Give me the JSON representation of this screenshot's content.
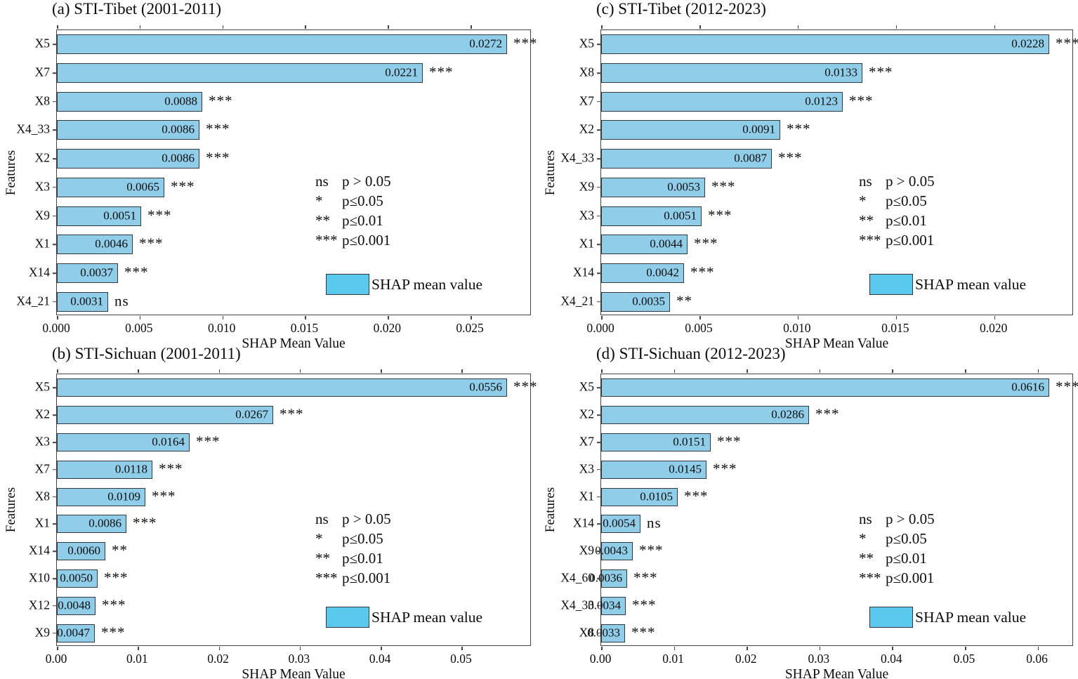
{
  "figure": {
    "background": "#ffffff",
    "bar_fill": "#90cde9",
    "bar_edge": "#32383d",
    "legend_swatch_fill": "#5bc9ee",
    "axis_color": "#3f4448",
    "text_color": "#0d0d0d"
  },
  "sig_legend": {
    "rows": [
      {
        "marker": "ns",
        "label": "p > 0.05"
      },
      {
        "marker": "*",
        "label": "p≤0.05"
      },
      {
        "marker": "**",
        "label": "p≤0.01"
      },
      {
        "marker": "***",
        "label": "p≤0.001"
      }
    ]
  },
  "series_legend_label": "SHAP mean value",
  "chart_data": [
    {
      "id": "a",
      "type": "bar",
      "orientation": "horizontal",
      "title": "(a) STI-Tibet (2001-2011)",
      "xlabel": "SHAP Mean Value",
      "ylabel": "Features",
      "categories": [
        "X5",
        "X7",
        "X8",
        "X4_33",
        "X2",
        "X3",
        "X9",
        "X1",
        "X14",
        "X4_21"
      ],
      "values": [
        0.0272,
        0.0221,
        0.0088,
        0.0086,
        0.0086,
        0.0065,
        0.0051,
        0.0046,
        0.0037,
        0.0031
      ],
      "value_labels": [
        "0.0272",
        "0.0221",
        "0.0088",
        "0.0086",
        "0.0086",
        "0.0065",
        "0.0051",
        "0.0046",
        "0.0037",
        "0.0031"
      ],
      "significance": [
        "***",
        "***",
        "***",
        "***",
        "***",
        "***",
        "***",
        "***",
        "***",
        "ns"
      ],
      "xlim": [
        0,
        0.02856
      ],
      "xticks": [
        {
          "value": 0,
          "label": "0.000"
        },
        {
          "value": 0.005,
          "label": "0.005"
        },
        {
          "value": 0.01,
          "label": "0.010"
        },
        {
          "value": 0.015,
          "label": "0.015"
        },
        {
          "value": 0.02,
          "label": "0.020"
        },
        {
          "value": 0.025,
          "label": "0.025"
        }
      ],
      "grid": false,
      "legend_position": "center-right"
    },
    {
      "id": "c",
      "type": "bar",
      "orientation": "horizontal",
      "title": "(c) STI-Tibet (2012-2023)",
      "xlabel": "SHAP Mean Value",
      "ylabel": "Features",
      "categories": [
        "X5",
        "X8",
        "X7",
        "X2",
        "X4_33",
        "X9",
        "X3",
        "X1",
        "X14",
        "X4_21"
      ],
      "values": [
        0.0228,
        0.0133,
        0.0123,
        0.0091,
        0.0087,
        0.0053,
        0.0051,
        0.0044,
        0.0042,
        0.0035
      ],
      "value_labels": [
        "0.0228",
        "0.0133",
        "0.0123",
        "0.0091",
        "0.0087",
        "0.0053",
        "0.0051",
        "0.0044",
        "0.0042",
        "0.0035"
      ],
      "significance": [
        "***",
        "***",
        "***",
        "***",
        "***",
        "***",
        "***",
        "***",
        "***",
        "**"
      ],
      "xlim": [
        0,
        0.02394
      ],
      "xticks": [
        {
          "value": 0,
          "label": "0.000"
        },
        {
          "value": 0.005,
          "label": "0.005"
        },
        {
          "value": 0.01,
          "label": "0.010"
        },
        {
          "value": 0.015,
          "label": "0.015"
        },
        {
          "value": 0.02,
          "label": "0.020"
        }
      ],
      "grid": false,
      "legend_position": "center-right"
    },
    {
      "id": "b",
      "type": "bar",
      "orientation": "horizontal",
      "title": "(b) STI-Sichuan (2001-2011)",
      "xlabel": "SHAP Mean Value",
      "ylabel": "Features",
      "categories": [
        "X5",
        "X2",
        "X3",
        "X7",
        "X8",
        "X1",
        "X14",
        "X10",
        "X12",
        "X9"
      ],
      "values": [
        0.0556,
        0.0267,
        0.0164,
        0.0118,
        0.0109,
        0.0086,
        0.006,
        0.005,
        0.0048,
        0.0047
      ],
      "value_labels": [
        "0.0556",
        "0.0267",
        "0.0164",
        "0.0118",
        "0.0109",
        "0.0086",
        "0.0060",
        "0.0050",
        "0.0048",
        "0.0047"
      ],
      "significance": [
        "***",
        "***",
        "***",
        "***",
        "***",
        "***",
        "**",
        "***",
        "***",
        "***"
      ],
      "xlim": [
        0,
        0.05838
      ],
      "xticks": [
        {
          "value": 0,
          "label": "0.00"
        },
        {
          "value": 0.01,
          "label": "0.01"
        },
        {
          "value": 0.02,
          "label": "0.02"
        },
        {
          "value": 0.03,
          "label": "0.03"
        },
        {
          "value": 0.04,
          "label": "0.04"
        },
        {
          "value": 0.05,
          "label": "0.05"
        }
      ],
      "grid": false,
      "legend_position": "center-right"
    },
    {
      "id": "d",
      "type": "bar",
      "orientation": "horizontal",
      "title": "(d) STI-Sichuan (2012-2023)",
      "xlabel": "SHAP Mean Value",
      "ylabel": "Features",
      "categories": [
        "X5",
        "X2",
        "X7",
        "X3",
        "X1",
        "X14",
        "X9",
        "X4_60",
        "X4_33",
        "X8"
      ],
      "values": [
        0.0616,
        0.0286,
        0.0151,
        0.0145,
        0.0105,
        0.0054,
        0.0043,
        0.0036,
        0.0034,
        0.0033
      ],
      "value_labels": [
        "0.0616",
        "0.0286",
        "0.0151",
        "0.0145",
        "0.0105",
        "0.0054",
        "0.0043",
        "0.0036",
        "0.0034",
        "0.0033"
      ],
      "significance": [
        "***",
        "***",
        "***",
        "***",
        "***",
        "ns",
        "***",
        "***",
        "***",
        "***"
      ],
      "xlim": [
        0,
        0.06468
      ],
      "xticks": [
        {
          "value": 0,
          "label": "0.00"
        },
        {
          "value": 0.01,
          "label": "0.01"
        },
        {
          "value": 0.02,
          "label": "0.02"
        },
        {
          "value": 0.03,
          "label": "0.03"
        },
        {
          "value": 0.04,
          "label": "0.04"
        },
        {
          "value": 0.05,
          "label": "0.05"
        },
        {
          "value": 0.06,
          "label": "0.06"
        }
      ],
      "grid": false,
      "legend_position": "center-right"
    }
  ]
}
